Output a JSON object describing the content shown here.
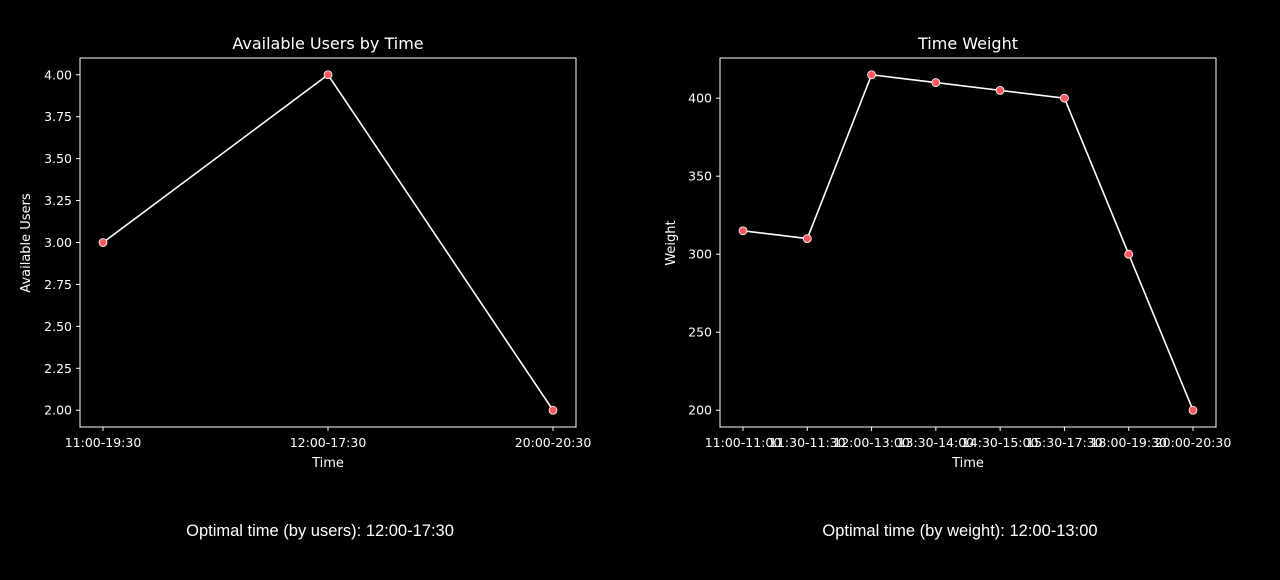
{
  "chart_data": [
    {
      "type": "line",
      "title": "Available Users by Time",
      "xlabel": "Time",
      "ylabel": "Available Users",
      "categories": [
        "11:00-19:30",
        "12:00-17:30",
        "20:00-20:30"
      ],
      "values": [
        3,
        4,
        2
      ],
      "yticks": [
        "2.00",
        "2.25",
        "2.50",
        "2.75",
        "3.00",
        "3.25",
        "3.50",
        "3.75",
        "4.00"
      ],
      "ylim": [
        1.9,
        4.1
      ],
      "grid": false,
      "line_color": "#ffffff",
      "marker_color": "#ff5a5f"
    },
    {
      "type": "line",
      "title": "Time Weight",
      "xlabel": "Time",
      "ylabel": "Weight",
      "categories": [
        "11:00-11:00",
        "11:30-11:30",
        "12:00-13:00",
        "13:30-14:00",
        "14:30-15:00",
        "15:30-17:30",
        "18:00-19:30",
        "20:00-20:30"
      ],
      "values": [
        315,
        310,
        415,
        410,
        405,
        400,
        300,
        200
      ],
      "yticks": [
        "200",
        "250",
        "300",
        "350",
        "400"
      ],
      "ylim": [
        189.25,
        425.75
      ],
      "grid": false,
      "line_color": "#ffffff",
      "marker_color": "#ff5a5f"
    }
  ],
  "footer": {
    "users_text": "Optimal time (by users): 12:00-17:30",
    "weight_text": "Optimal time (by weight): 12:00-13:00"
  },
  "colors": {
    "background": "#000000",
    "foreground": "#ffffff",
    "marker": "#ff5a5f"
  }
}
